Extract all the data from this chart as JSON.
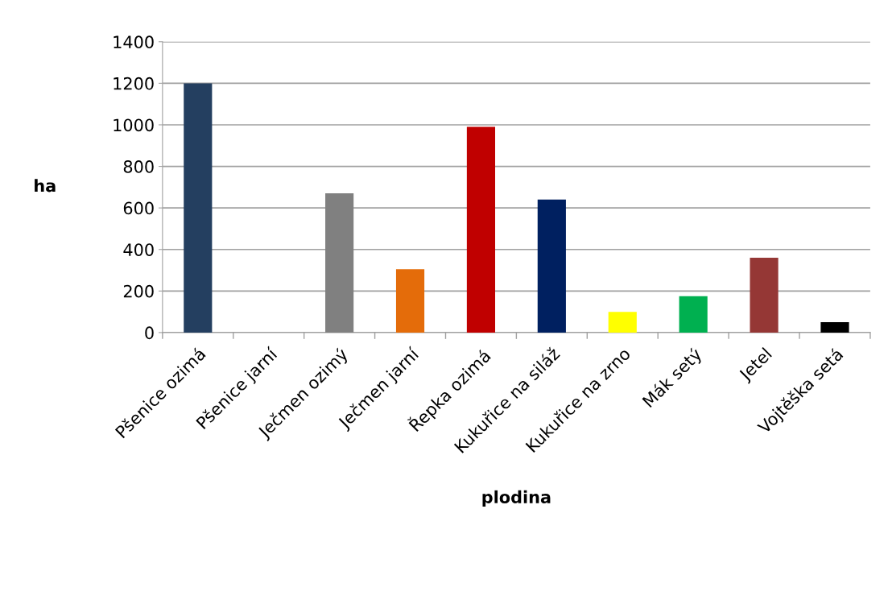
{
  "chart_data": {
    "type": "bar",
    "xlabel": "plodina",
    "ylabel": "ha",
    "categories": [
      "Pšenice ozimá",
      "Pšenice jarní",
      "Ječmen ozimý",
      "Ječmen jarní",
      "Řepka ozimá",
      "Kukuřice na siláž",
      "Kukuřice na zrno",
      "Mák setý",
      "Jetel",
      "Vojtěška setá"
    ],
    "values": [
      1200,
      0,
      670,
      305,
      990,
      640,
      100,
      175,
      360,
      50
    ],
    "colors": [
      "#243f60",
      "#1f3864",
      "#808080",
      "#e46c0a",
      "#c00000",
      "#002060",
      "#ffff00",
      "#00b050",
      "#953735",
      "#000000"
    ],
    "ylim": [
      0,
      1400
    ],
    "yticks": [
      0,
      200,
      400,
      600,
      800,
      1000,
      1200,
      1400
    ],
    "grid": "y",
    "legend": false
  }
}
